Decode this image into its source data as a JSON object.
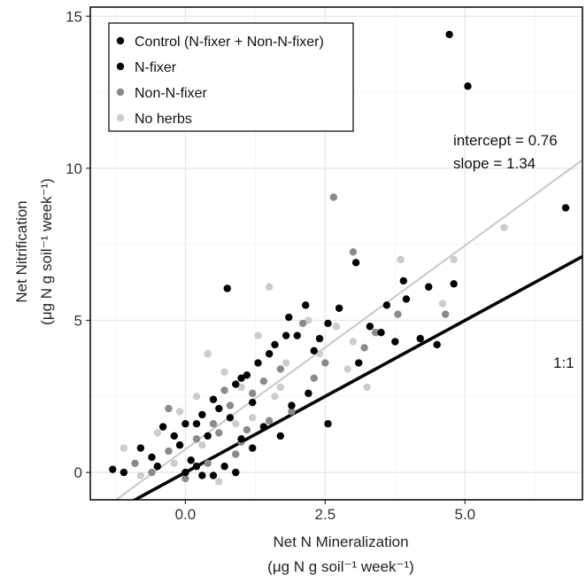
{
  "chart_data": {
    "type": "scatter",
    "xlabel": "Net N Mineralization",
    "xlabel_units": "(μg N g soil⁻¹ week⁻¹)",
    "ylabel": "Net Nitrification",
    "ylabel_units": "(μg N g soil⁻¹ week⁻¹)",
    "xlim": [
      -1.7,
      7.1
    ],
    "ylim": [
      -0.9,
      15.3
    ],
    "x_ticks": [
      0.0,
      2.5,
      5.0
    ],
    "x_tick_labels": [
      "0.0",
      "2.5",
      "5.0"
    ],
    "y_ticks": [
      0,
      5,
      10,
      15
    ],
    "y_tick_labels": [
      "0",
      "5",
      "10",
      "15"
    ],
    "grid": true,
    "legend_position": "top-left",
    "series": [
      {
        "name": "Control (N-fixer + Non-N-fixer)",
        "color": "#000000",
        "points": [
          [
            4.72,
            14.4
          ],
          [
            5.05,
            12.7
          ],
          [
            6.8,
            8.7
          ],
          [
            0.75,
            6.05
          ],
          [
            3.05,
            6.9
          ],
          [
            3.6,
            5.5
          ],
          [
            3.9,
            6.3
          ],
          [
            4.35,
            6.1
          ],
          [
            4.8,
            6.2
          ],
          [
            2.55,
            4.9
          ],
          [
            2.3,
            4.0
          ],
          [
            2.0,
            4.5
          ],
          [
            1.6,
            4.2
          ],
          [
            1.3,
            3.6
          ],
          [
            1.1,
            3.2
          ],
          [
            0.9,
            2.9
          ],
          [
            0.5,
            2.4
          ],
          [
            0.2,
            1.6
          ],
          [
            -0.2,
            1.2
          ],
          [
            -0.6,
            0.5
          ],
          [
            -1.3,
            0.1
          ],
          [
            0.0,
            0.0
          ],
          [
            0.3,
            -0.1
          ],
          [
            0.7,
            0.2
          ],
          [
            1.2,
            0.8
          ],
          [
            1.7,
            1.2
          ],
          [
            2.55,
            1.6
          ],
          [
            3.1,
            3.6
          ],
          [
            3.5,
            4.6
          ],
          [
            4.2,
            4.4
          ]
        ]
      },
      {
        "name": "N-fixer",
        "color": "#000000",
        "points": [
          [
            2.15,
            5.5
          ],
          [
            2.75,
            5.4
          ],
          [
            3.3,
            4.8
          ],
          [
            3.95,
            5.7
          ],
          [
            4.5,
            4.2
          ],
          [
            1.8,
            4.5
          ],
          [
            1.5,
            3.9
          ],
          [
            1.0,
            3.1
          ],
          [
            0.6,
            2.1
          ],
          [
            0.3,
            1.9
          ],
          [
            0.0,
            1.6
          ],
          [
            -0.4,
            1.5
          ],
          [
            -0.8,
            0.8
          ],
          [
            -1.1,
            0.0
          ],
          [
            0.1,
            0.4
          ],
          [
            0.5,
            -0.1
          ],
          [
            0.9,
            0.0
          ],
          [
            1.4,
            1.5
          ],
          [
            1.9,
            2.2
          ],
          [
            2.2,
            2.6
          ],
          [
            1.2,
            2.3
          ],
          [
            0.8,
            1.8
          ],
          [
            0.4,
            1.2
          ],
          [
            -0.1,
            0.9
          ],
          [
            3.75,
            4.3
          ],
          [
            1.85,
            5.1
          ],
          [
            2.4,
            4.4
          ],
          [
            1.0,
            1.1
          ],
          [
            0.2,
            0.2
          ],
          [
            -0.5,
            0.2
          ]
        ]
      },
      {
        "name": "Non-N-fixer",
        "color": "#8a8a8a",
        "points": [
          [
            2.65,
            9.05
          ],
          [
            3.0,
            7.25
          ],
          [
            3.8,
            5.2
          ],
          [
            4.65,
            5.2
          ],
          [
            2.1,
            4.9
          ],
          [
            2.5,
            3.6
          ],
          [
            1.7,
            3.4
          ],
          [
            1.2,
            2.6
          ],
          [
            0.8,
            2.2
          ],
          [
            0.5,
            1.6
          ],
          [
            0.2,
            1.1
          ],
          [
            -0.3,
            0.7
          ],
          [
            -0.9,
            0.3
          ],
          [
            -0.3,
            2.1
          ],
          [
            0.4,
            0.3
          ],
          [
            1.0,
            1.0
          ],
          [
            1.5,
            1.7
          ],
          [
            2.3,
            3.1
          ],
          [
            3.2,
            4.1
          ],
          [
            0.0,
            -0.2
          ],
          [
            0.7,
            2.7
          ],
          [
            1.4,
            3.0
          ],
          [
            1.9,
            2.0
          ],
          [
            0.9,
            0.6
          ],
          [
            3.4,
            4.6
          ],
          [
            0.6,
            1.3
          ],
          [
            -0.6,
            0.0
          ],
          [
            1.1,
            1.4
          ]
        ]
      },
      {
        "name": "No herbs",
        "color": "#cccccc",
        "points": [
          [
            5.7,
            8.05
          ],
          [
            4.8,
            7.0
          ],
          [
            3.85,
            7.0
          ],
          [
            1.5,
            6.1
          ],
          [
            4.6,
            5.55
          ],
          [
            2.7,
            4.8
          ],
          [
            3.0,
            4.3
          ],
          [
            2.4,
            3.9
          ],
          [
            1.8,
            3.6
          ],
          [
            1.3,
            4.5
          ],
          [
            0.4,
            3.9
          ],
          [
            0.7,
            3.3
          ],
          [
            1.0,
            2.8
          ],
          [
            1.6,
            2.5
          ],
          [
            0.2,
            2.5
          ],
          [
            -0.1,
            2.0
          ],
          [
            -0.5,
            1.3
          ],
          [
            -1.1,
            0.8
          ],
          [
            -0.2,
            0.3
          ],
          [
            0.6,
            -0.3
          ],
          [
            0.9,
            1.6
          ],
          [
            1.7,
            2.8
          ],
          [
            2.9,
            3.4
          ],
          [
            3.25,
            2.8
          ],
          [
            2.2,
            5.0
          ],
          [
            0.3,
            0.9
          ],
          [
            -0.8,
            -0.1
          ],
          [
            1.2,
            1.8
          ]
        ]
      }
    ],
    "lines": [
      {
        "name": "regression",
        "intercept": 0.76,
        "slope": 1.34,
        "color": "#c8c8c8"
      },
      {
        "name": "one-to-one",
        "intercept": 0,
        "slope": 1,
        "color": "#000000"
      }
    ],
    "annotations": {
      "intercept": "intercept = 0.76",
      "slope": "slope = 1.34",
      "one_to_one": "1:1"
    }
  }
}
